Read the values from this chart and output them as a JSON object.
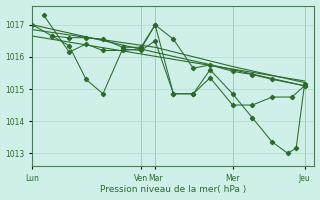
{
  "xlabel": "Pression niveau de la mer( hPa )",
  "background_color": "#cef0e8",
  "grid_color": "#aaddd4",
  "line_color": "#2d6a2d",
  "tick_label_color": "#2d6a2d",
  "axis_label_color": "#2d6a2d",
  "vline_color": "#7aaa8a",
  "ylim": [
    1012.6,
    1017.6
  ],
  "yticks": [
    1013,
    1014,
    1015,
    1016,
    1017
  ],
  "xlim": [
    0,
    1
  ],
  "xtick_positions": [
    0.0,
    0.385,
    0.435,
    0.71,
    0.965
  ],
  "xtick_labels": [
    "Lun",
    "Ven",
    "Mar",
    "Mer",
    "Jeu"
  ],
  "vline_positions": [
    0.0,
    0.385,
    0.435,
    0.71,
    0.965
  ],
  "trend_lines": [
    {
      "x": [
        0.0,
        0.965
      ],
      "y": [
        1017.0,
        1015.1
      ]
    },
    {
      "x": [
        0.0,
        0.965
      ],
      "y": [
        1016.65,
        1015.25
      ]
    },
    {
      "x": [
        0.0,
        0.435,
        0.71,
        0.965
      ],
      "y": [
        1016.85,
        1016.3,
        1015.7,
        1015.2
      ]
    }
  ],
  "jagged_lines": [
    {
      "x": [
        0.0,
        0.07,
        0.13,
        0.19,
        0.25,
        0.32,
        0.385,
        0.435,
        0.5,
        0.57,
        0.63,
        0.71,
        0.78,
        0.85,
        0.965
      ],
      "y": [
        1017.0,
        1016.65,
        1016.6,
        1016.6,
        1016.55,
        1016.3,
        1016.3,
        1017.0,
        1016.55,
        1015.65,
        1015.75,
        1015.55,
        1015.45,
        1015.3,
        1015.1
      ]
    },
    {
      "x": [
        0.07,
        0.13,
        0.19,
        0.25,
        0.32,
        0.385,
        0.435,
        0.5,
        0.57,
        0.63,
        0.71,
        0.78,
        0.85,
        0.92,
        0.965
      ],
      "y": [
        1016.65,
        1016.35,
        1015.3,
        1014.85,
        1016.25,
        1016.2,
        1016.5,
        1014.85,
        1014.85,
        1015.35,
        1014.5,
        1014.5,
        1014.75,
        1014.75,
        1015.1
      ]
    },
    {
      "x": [
        0.04,
        0.13,
        0.19,
        0.25,
        0.32,
        0.385,
        0.435,
        0.5,
        0.57,
        0.63,
        0.71,
        0.78,
        0.85,
        0.905,
        0.935,
        0.965
      ],
      "y": [
        1017.3,
        1016.15,
        1016.4,
        1016.2,
        1016.2,
        1016.25,
        1017.0,
        1014.85,
        1014.85,
        1015.6,
        1014.85,
        1014.1,
        1013.35,
        1013.0,
        1013.15,
        1015.15
      ]
    }
  ]
}
